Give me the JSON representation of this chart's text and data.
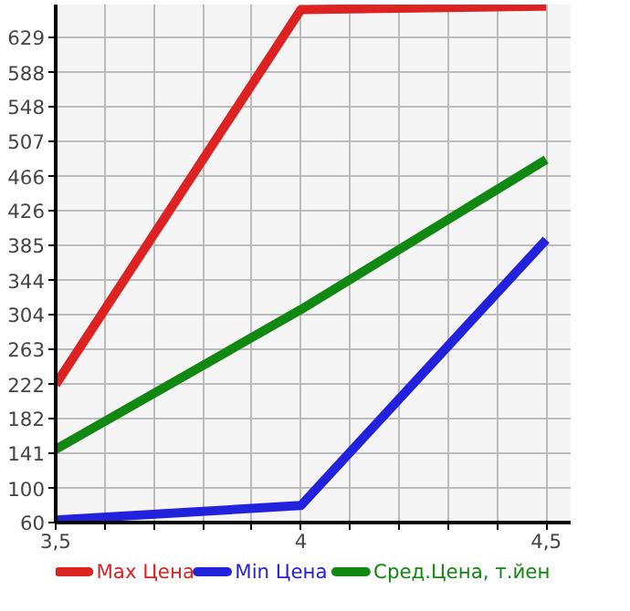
{
  "chart_data": {
    "type": "line",
    "x": [
      3.5,
      4,
      4.5
    ],
    "series": [
      {
        "name": "Max Цена",
        "color": "#dd2222",
        "values": [
          222,
          662,
          666
        ]
      },
      {
        "name": "Min Цена",
        "color": "#2222dd",
        "values": [
          63,
          80,
          392
        ]
      },
      {
        "name": "Сред.Цена, т.йен",
        "color": "#118811",
        "values": [
          146,
          310,
          486
        ]
      }
    ],
    "xlim": [
      3.5,
      4.55
    ],
    "xticks": [
      {
        "value": 3.5,
        "label": "3,5"
      },
      {
        "value": 3.6,
        "label": null
      },
      {
        "value": 3.7,
        "label": null
      },
      {
        "value": 3.8,
        "label": null
      },
      {
        "value": 3.9,
        "label": null
      },
      {
        "value": 4,
        "label": "4"
      },
      {
        "value": 4.1,
        "label": null
      },
      {
        "value": 4.2,
        "label": null
      },
      {
        "value": 4.3,
        "label": null
      },
      {
        "value": 4.4,
        "label": null
      },
      {
        "value": 4.5,
        "label": "4,5"
      }
    ],
    "ylim": [
      60,
      668
    ],
    "yticks": [
      60,
      100,
      141,
      182,
      222,
      263,
      304,
      344,
      385,
      426,
      466,
      507,
      548,
      588,
      629
    ],
    "grid": true,
    "legend": "bottom",
    "line_style": "solid",
    "marker": "none"
  }
}
